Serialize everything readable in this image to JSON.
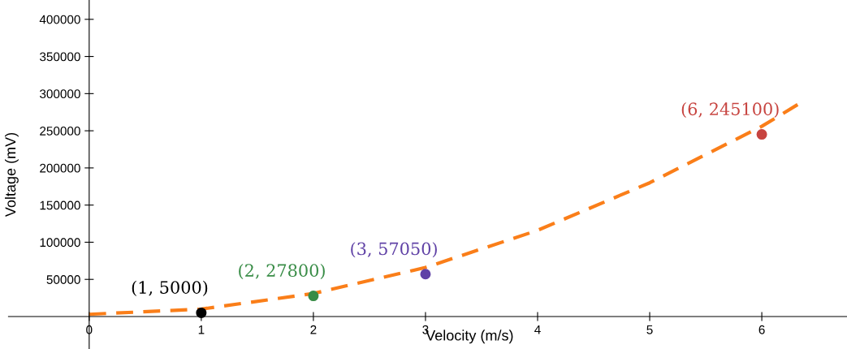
{
  "chart_data": {
    "type": "scatter",
    "xlabel": "Velocity (m/s)",
    "ylabel": "Voltage (mV)",
    "xlim": [
      -0.72,
      6.76
    ],
    "ylim": [
      -43700,
      426000
    ],
    "xticks": [
      0,
      1,
      2,
      3,
      4,
      5,
      6
    ],
    "yticks": [
      50000,
      100000,
      150000,
      200000,
      250000,
      300000,
      350000,
      400000
    ],
    "grid": false,
    "legend": false,
    "series": [
      {
        "type": "line",
        "color": "#fa7e19",
        "line_style": "dashed",
        "marker": "none",
        "x": [
          0,
          1,
          2,
          3,
          4,
          5,
          6,
          6.35
        ],
        "values": [
          3000,
          10000,
          31000,
          66000,
          116000,
          180000,
          256000,
          288000
        ]
      },
      {
        "marker": "circle",
        "colors": [
          "#000000",
          "#388c46",
          "#6042a6",
          "#c74440"
        ],
        "x": [
          1,
          2,
          3,
          6
        ],
        "values": [
          5000,
          27800,
          57050,
          245100
        ]
      }
    ],
    "annotations": [
      {
        "text": "(1, 5000)",
        "x": 1,
        "y": 5000
      },
      {
        "text": "(2, 27800)",
        "x": 2,
        "y": 27800
      },
      {
        "text": "(3, 57050)",
        "x": 3,
        "y": 57050
      },
      {
        "text": "(6, 245100)",
        "x": 6,
        "y": 245100
      }
    ]
  }
}
